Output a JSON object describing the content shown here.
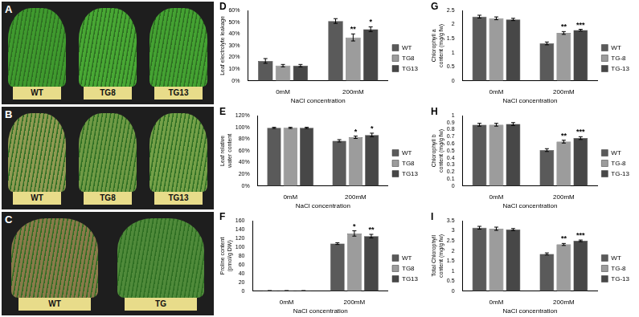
{
  "photos": [
    {
      "annotations": [
        "A"
      ],
      "labels": [
        "WT",
        "TG8",
        "TG13"
      ]
    },
    {
      "annotations": [
        "B"
      ],
      "labels": [
        "WT",
        "TG8",
        "TG13"
      ]
    },
    {
      "annotations": [
        "C"
      ],
      "labels": [
        "WT",
        "TG"
      ]
    }
  ],
  "chart_data": [
    {
      "type": "bar",
      "annotations": [
        "D"
      ],
      "categories": [
        "0mM",
        "200mM"
      ],
      "x_label": "NaCl concentration",
      "y_label": "Leaf electrolyte leakage",
      "ylim": [
        0,
        60
      ],
      "yticks": [
        {
          "value": 0,
          "label": "0%"
        },
        {
          "value": 10,
          "label": "10%"
        },
        {
          "value": 20,
          "label": "20%"
        },
        {
          "value": 30,
          "label": "30%"
        },
        {
          "value": 40,
          "label": "40%"
        },
        {
          "value": 50,
          "label": "50%"
        },
        {
          "value": 60,
          "label": "60%"
        }
      ],
      "grid": false,
      "legend": "right",
      "series": [
        {
          "name": "WT",
          "color": "#5a5a5a",
          "values": [
            17,
            51
          ],
          "errors": [
            2,
            2
          ],
          "significance": [
            null,
            null
          ]
        },
        {
          "name": "TG8",
          "color": "#9c9c9c",
          "values": [
            13,
            37
          ],
          "errors": [
            1,
            3
          ],
          "significance": [
            null,
            "**"
          ]
        },
        {
          "name": "TG13",
          "color": "#474747",
          "values": [
            13,
            44
          ],
          "errors": [
            1,
            2
          ],
          "significance": [
            null,
            "*"
          ]
        }
      ]
    },
    {
      "type": "bar",
      "annotations": [
        "E"
      ],
      "categories": [
        "0mM",
        "200mM"
      ],
      "x_label": "NaCl concentration",
      "y_label": "Leaf relative water content",
      "ylim": [
        0,
        120
      ],
      "yticks": [
        {
          "value": 0,
          "label": "0%"
        },
        {
          "value": 20,
          "label": "20%"
        },
        {
          "value": 40,
          "label": "40%"
        },
        {
          "value": 60,
          "label": "60%"
        },
        {
          "value": 80,
          "label": "80%"
        },
        {
          "value": 100,
          "label": "100%"
        },
        {
          "value": 120,
          "label": "120%"
        }
      ],
      "grid": false,
      "legend": "right",
      "series": [
        {
          "name": "WT",
          "color": "#5a5a5a",
          "values": [
            99,
            77
          ],
          "errors": [
            1,
            2
          ],
          "significance": [
            null,
            null
          ]
        },
        {
          "name": "TG8",
          "color": "#9c9c9c",
          "values": [
            99,
            83
          ],
          "errors": [
            1,
            2
          ],
          "significance": [
            null,
            "*"
          ]
        },
        {
          "name": "TG13",
          "color": "#474747",
          "values": [
            99,
            87
          ],
          "errors": [
            1,
            3
          ],
          "significance": [
            null,
            "*"
          ]
        }
      ]
    },
    {
      "type": "bar",
      "annotations": [
        "F"
      ],
      "categories": [
        "0mM",
        "200mM"
      ],
      "x_label": "NaCl concentration",
      "y_label": "Proline content (pmol/g DW)",
      "ylim": [
        0,
        160
      ],
      "yticks": [
        0,
        20,
        40,
        60,
        80,
        100,
        120,
        140,
        160
      ],
      "grid": false,
      "legend": "right",
      "series": [
        {
          "name": "WT",
          "color": "#5a5a5a",
          "values": [
            1,
            108
          ],
          "errors": [
            0,
            2
          ],
          "significance": [
            null,
            null
          ]
        },
        {
          "name": "TG8",
          "color": "#9c9c9c",
          "values": [
            1,
            131
          ],
          "errors": [
            0,
            6
          ],
          "significance": [
            null,
            "*"
          ]
        },
        {
          "name": "TG13",
          "color": "#474747",
          "values": [
            1,
            125
          ],
          "errors": [
            0,
            4
          ],
          "significance": [
            null,
            "**"
          ]
        }
      ]
    },
    {
      "type": "bar",
      "annotations": [
        "G"
      ],
      "categories": [
        "0mM",
        "200mM"
      ],
      "x_label": "NaCl concentration",
      "y_label": "Chlorophyll a content (mg/g fw)",
      "ylim": [
        0,
        2.5
      ],
      "yticks": [
        0,
        0.5,
        1,
        1.5,
        2,
        2.5
      ],
      "grid": false,
      "legend": "right",
      "series": [
        {
          "name": "WT",
          "color": "#5a5a5a",
          "values": [
            2.28,
            1.33
          ],
          "errors": [
            0.05,
            0.05
          ],
          "significance": [
            null,
            null
          ]
        },
        {
          "name": "TG-8",
          "color": "#9c9c9c",
          "values": [
            2.22,
            1.7
          ],
          "errors": [
            0.05,
            0.05
          ],
          "significance": [
            null,
            "**"
          ]
        },
        {
          "name": "TG-13",
          "color": "#474747",
          "values": [
            2.18,
            1.8
          ],
          "errors": [
            0.04,
            0.03
          ],
          "significance": [
            null,
            "***"
          ]
        }
      ]
    },
    {
      "type": "bar",
      "annotations": [
        "H"
      ],
      "categories": [
        "0mM",
        "200mM"
      ],
      "x_label": "NaCl concentration",
      "y_label": "Chlorophyll b content (mg/g fw)",
      "ylim": [
        0,
        1
      ],
      "yticks": [
        0,
        0.1,
        0.2,
        0.3,
        0.4,
        0.5,
        0.6,
        0.7,
        0.8,
        0.9,
        1
      ],
      "grid": false,
      "legend": "right",
      "series": [
        {
          "name": "WT",
          "color": "#5a5a5a",
          "values": [
            0.87,
            0.51
          ],
          "errors": [
            0.02,
            0.02
          ],
          "significance": [
            null,
            null
          ]
        },
        {
          "name": "TG-8",
          "color": "#9c9c9c",
          "values": [
            0.87,
            0.63
          ],
          "errors": [
            0.02,
            0.02
          ],
          "significance": [
            null,
            "**"
          ]
        },
        {
          "name": "TG-13",
          "color": "#474747",
          "values": [
            0.88,
            0.68
          ],
          "errors": [
            0.02,
            0.02
          ],
          "significance": [
            null,
            "***"
          ]
        }
      ]
    },
    {
      "type": "bar",
      "annotations": [
        "I"
      ],
      "categories": [
        "0mM",
        "200mM"
      ],
      "x_label": "NaCl concentration",
      "y_label": "Total Chlorophyll content (mg/g fw)",
      "ylim": [
        0,
        3.5
      ],
      "yticks": [
        0,
        0.5,
        1,
        1.5,
        2,
        2.5,
        3,
        3.5
      ],
      "grid": false,
      "legend": "right",
      "series": [
        {
          "name": "WT",
          "color": "#5a5a5a",
          "values": [
            3.15,
            1.85
          ],
          "errors": [
            0.07,
            0.05
          ],
          "significance": [
            null,
            null
          ]
        },
        {
          "name": "TG-8",
          "color": "#9c9c9c",
          "values": [
            3.1,
            2.32
          ],
          "errors": [
            0.08,
            0.05
          ],
          "significance": [
            null,
            "**"
          ]
        },
        {
          "name": "TG-13",
          "color": "#474747",
          "values": [
            3.06,
            2.5
          ],
          "errors": [
            0.05,
            0.04
          ],
          "significance": [
            null,
            "***"
          ]
        }
      ]
    }
  ]
}
